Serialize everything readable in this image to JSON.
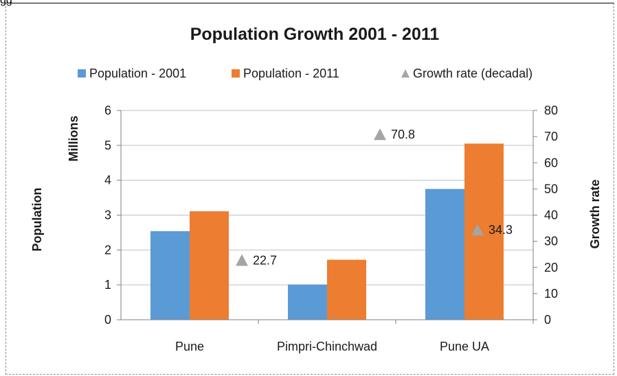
{
  "corner_fragment": "gg",
  "chart_data": {
    "type": "bar",
    "title": "Population Growth 2001 - 2011",
    "categories": [
      "Pune",
      "Pimpri-Chinchwad",
      "Pune UA"
    ],
    "series": [
      {
        "name": "Population - 2001",
        "values": [
          2.54,
          1.01,
          3.75
        ],
        "axis": "left",
        "color": "#5b9bd5"
      },
      {
        "name": "Population - 2011",
        "values": [
          3.11,
          1.72,
          5.05
        ],
        "axis": "left",
        "color": "#ed7d31"
      },
      {
        "name": "Growth rate (decadal)",
        "values": [
          22.7,
          70.8,
          34.3
        ],
        "axis": "right",
        "marker": "triangle",
        "color": "#a5a5a5"
      }
    ],
    "data_labels": [
      "22.7",
      "70.8",
      "34.3"
    ],
    "y_left": {
      "label": "Population",
      "unit": "Millions",
      "ylim": [
        0,
        6
      ],
      "ticks": [
        "0",
        "1",
        "2",
        "3",
        "4",
        "5",
        "6"
      ]
    },
    "y_right": {
      "label": "Growth rate",
      "ylim": [
        0,
        80
      ],
      "ticks": [
        "0",
        "10",
        "20",
        "30",
        "40",
        "50",
        "60",
        "70",
        "80"
      ]
    },
    "grid": true,
    "legend_position": "top"
  }
}
